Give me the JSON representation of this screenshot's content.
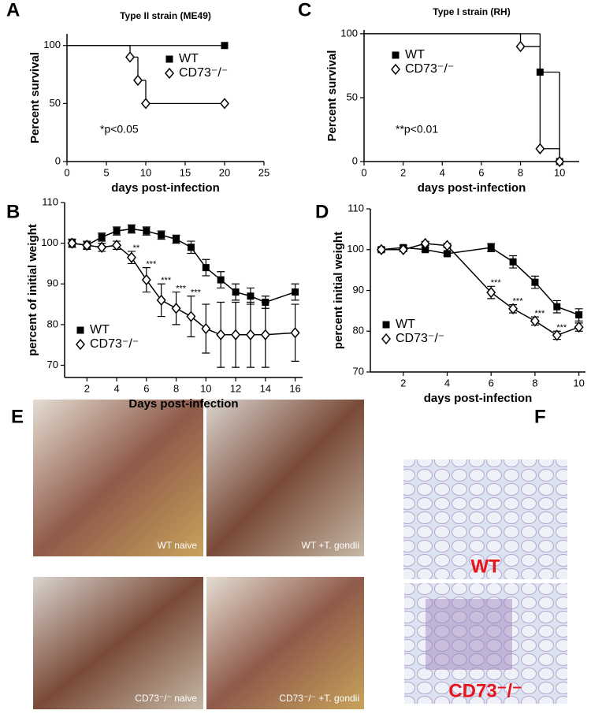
{
  "chart_data": [
    {
      "type": "step",
      "label": "A",
      "title": "Type II strain (ME49)",
      "xlabel": "days post-infection",
      "ylabel": "Percent survival",
      "xlim": [
        0,
        25
      ],
      "xticks": [
        0,
        5,
        10,
        15,
        20,
        25
      ],
      "ylim": [
        0,
        110
      ],
      "yticks": [
        0,
        50,
        100
      ],
      "legend": "upper right",
      "annotation": "*p<0.05",
      "series": [
        {
          "name": "WT",
          "color": "#000000",
          "marker": "square",
          "x": [
            0,
            20
          ],
          "values": [
            100,
            100
          ]
        },
        {
          "name": "CD73⁻/⁻",
          "color": "#000000",
          "marker": "diamond",
          "x": [
            0,
            8,
            9,
            10,
            20
          ],
          "values": [
            100,
            90,
            70,
            50,
            50
          ]
        }
      ]
    },
    {
      "type": "line",
      "label": "B",
      "xlabel": "Days post-infection",
      "ylabel": "percent of initial weight",
      "xlim": [
        0.5,
        16.5
      ],
      "xticks": [
        2,
        4,
        6,
        8,
        10,
        12,
        14,
        16
      ],
      "ylim": [
        67,
        110
      ],
      "yticks": [
        70,
        80,
        90,
        100,
        110
      ],
      "legend": "lower left",
      "x": [
        1,
        2,
        3,
        4,
        5,
        6,
        7,
        8,
        9,
        10,
        11,
        12,
        13,
        14,
        16
      ],
      "stars": [
        null,
        null,
        null,
        null,
        "**",
        "***",
        "***",
        "***",
        "***",
        null,
        null,
        null,
        null,
        null,
        null
      ],
      "series": [
        {
          "name": "WT",
          "color": "#000000",
          "marker": "square",
          "values": [
            100,
            99.5,
            101.5,
            103,
            103.5,
            103,
            102,
            101,
            99,
            94,
            91,
            88,
            87,
            85.5,
            88
          ],
          "errors": [
            1,
            1,
            1,
            1,
            1,
            1,
            1,
            1,
            1.5,
            2,
            2,
            2,
            2,
            1.5,
            2
          ]
        },
        {
          "name": "CD73⁻/⁻",
          "color": "#000000",
          "marker": "diamond",
          "values": [
            100,
            99.5,
            99,
            99.5,
            96.5,
            91,
            86,
            84,
            82,
            79,
            77.5,
            77.5,
            77.5,
            77.5,
            78
          ],
          "errors": [
            1,
            1,
            1,
            1,
            1.5,
            3,
            4,
            4,
            5,
            6,
            8,
            8,
            8,
            8,
            7
          ]
        }
      ]
    },
    {
      "type": "step",
      "label": "C",
      "title": "Type I strain (RH)",
      "xlabel": "days post-infection",
      "ylabel": "Percent survival",
      "xlim": [
        0,
        11
      ],
      "xticks": [
        0,
        2,
        4,
        6,
        8,
        10
      ],
      "ylim": [
        0,
        103
      ],
      "yticks": [
        0,
        50,
        100
      ],
      "legend": "upper left",
      "annotation": "**p<0.01",
      "series": [
        {
          "name": "WT",
          "color": "#000000",
          "marker": "square",
          "x": [
            0,
            9,
            10
          ],
          "values": [
            100,
            70,
            0
          ]
        },
        {
          "name": "CD73⁻/⁻",
          "color": "#000000",
          "marker": "diamond",
          "x": [
            0,
            8,
            9,
            10
          ],
          "values": [
            100,
            90,
            10,
            0
          ]
        }
      ]
    },
    {
      "type": "line",
      "label": "D",
      "xlabel": "days post-infection",
      "ylabel": "percent initial weight",
      "xlim": [
        0.5,
        10.3
      ],
      "xticks": [
        2,
        4,
        6,
        8,
        10
      ],
      "ylim": [
        70,
        110
      ],
      "yticks": [
        70,
        80,
        90,
        100,
        110
      ],
      "legend": "lower left",
      "x": [
        1,
        2,
        3,
        4,
        6,
        7,
        8,
        9,
        10
      ],
      "stars": [
        null,
        null,
        null,
        null,
        "***",
        "***",
        "***",
        "***",
        null
      ],
      "series": [
        {
          "name": "WT",
          "color": "#000000",
          "marker": "square",
          "values": [
            100,
            100.5,
            100,
            99,
            100.5,
            97,
            92,
            86,
            84
          ],
          "errors": [
            0.5,
            0.5,
            0.5,
            0.5,
            1,
            1.5,
            1.5,
            1.5,
            1.5
          ]
        },
        {
          "name": "CD73⁻/⁻",
          "color": "#000000",
          "marker": "diamond",
          "values": [
            100,
            100,
            101.5,
            101,
            89.5,
            85.5,
            82.5,
            79,
            81
          ],
          "errors": [
            0.5,
            0.5,
            0.5,
            0.5,
            1.5,
            1,
            1,
            1,
            1
          ]
        }
      ]
    }
  ],
  "figure_panels": {
    "E": {
      "label": "E",
      "photos": [
        "WT naive",
        "WT +T. gondii",
        "CD73⁻/⁻ naive",
        "CD73⁻/⁻ +T. gondii"
      ]
    },
    "F": {
      "label": "F",
      "images": [
        "WT",
        "CD73⁻/⁻"
      ]
    }
  }
}
